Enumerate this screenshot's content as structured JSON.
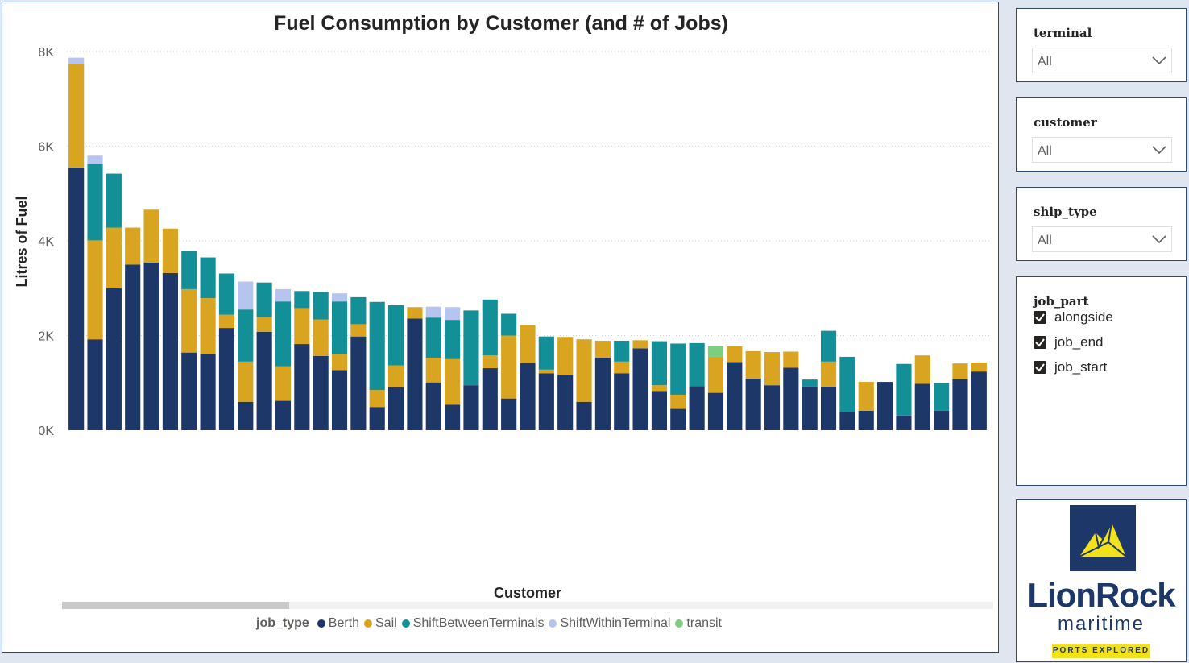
{
  "chart_data": {
    "type": "bar",
    "stacked": true,
    "title": "Fuel Consumption by Customer (and # of Jobs)",
    "xlabel": "Customer",
    "ylabel": "Litres of Fuel",
    "ylim": [
      0,
      8000
    ],
    "yticks": [
      "0K",
      "2K",
      "4K",
      "6K",
      "8K"
    ],
    "grid": true,
    "legend_position": "bottom",
    "legend_title": "job_type",
    "series": [
      {
        "name": "Berth",
        "color": "#1d3768",
        "values": [
          5550,
          1920,
          3000,
          3500,
          3540,
          3320,
          1640,
          1600,
          2160,
          600,
          2080,
          620,
          1820,
          1570,
          1270,
          1980,
          490,
          910,
          2360,
          1010,
          540,
          950,
          1310,
          670,
          1420,
          1200,
          1170,
          600,
          1530,
          1200,
          1730,
          830,
          450,
          930,
          790,
          1440,
          1090,
          950,
          1320,
          920,
          920,
          390,
          410,
          1020,
          310,
          980,
          410,
          1080,
          1240
        ]
      },
      {
        "name": "Sail",
        "color": "#d9a420",
        "values": [
          2180,
          2090,
          1280,
          780,
          1120,
          940,
          1340,
          1190,
          280,
          850,
          310,
          730,
          760,
          770,
          330,
          260,
          360,
          460,
          240,
          520,
          960,
          0,
          270,
          1330,
          800,
          80,
          800,
          1320,
          360,
          250,
          170,
          120,
          300,
          0,
          760,
          330,
          580,
          700,
          340,
          0,
          530,
          0,
          610,
          0,
          0,
          600,
          0,
          330,
          190
        ]
      },
      {
        "name": "ShiftBetweenTerminals",
        "color": "#138f97",
        "values": [
          0,
          1620,
          1140,
          0,
          0,
          0,
          800,
          860,
          870,
          1100,
          730,
          1370,
          360,
          580,
          1120,
          570,
          1860,
          1270,
          0,
          850,
          830,
          1580,
          1180,
          460,
          0,
          700,
          0,
          0,
          0,
          440,
          0,
          930,
          1080,
          910,
          0,
          0,
          0,
          0,
          0,
          150,
          650,
          1160,
          0,
          0,
          1090,
          0,
          590,
          0,
          0
        ]
      },
      {
        "name": "ShiftWithinTerminal",
        "color": "#b5c5ef",
        "values": [
          140,
          170,
          0,
          0,
          0,
          0,
          0,
          0,
          0,
          590,
          0,
          260,
          0,
          0,
          170,
          0,
          0,
          0,
          0,
          230,
          270,
          0,
          0,
          0,
          0,
          0,
          0,
          0,
          0,
          0,
          0,
          0,
          0,
          0,
          0,
          0,
          0,
          0,
          0,
          0,
          0,
          0,
          0,
          0,
          0,
          0,
          0,
          0,
          0
        ]
      },
      {
        "name": "transit",
        "color": "#7fcd7f",
        "values": [
          0,
          0,
          0,
          0,
          0,
          0,
          0,
          0,
          0,
          0,
          0,
          0,
          0,
          0,
          0,
          0,
          0,
          0,
          0,
          0,
          0,
          0,
          0,
          0,
          0,
          0,
          0,
          0,
          0,
          0,
          0,
          0,
          0,
          0,
          230,
          0,
          0,
          0,
          0,
          0,
          0,
          0,
          0,
          0,
          0,
          0,
          0,
          0,
          0
        ]
      }
    ]
  },
  "slicers": {
    "terminal": {
      "title": "terminal",
      "value": "All"
    },
    "customer": {
      "title": "customer",
      "value": "All"
    },
    "ship_type": {
      "title": "ship_type",
      "value": "All"
    },
    "job_part": {
      "title": "job_part",
      "options": [
        "alongside",
        "job_end",
        "job_start"
      ]
    }
  },
  "logo": {
    "wordmark": "LionRock",
    "sub": "maritime",
    "tagline": "PORTS EXPLORED"
  },
  "colors": {
    "accent": "#1d3768",
    "panel_border": "#2b4a7a"
  }
}
